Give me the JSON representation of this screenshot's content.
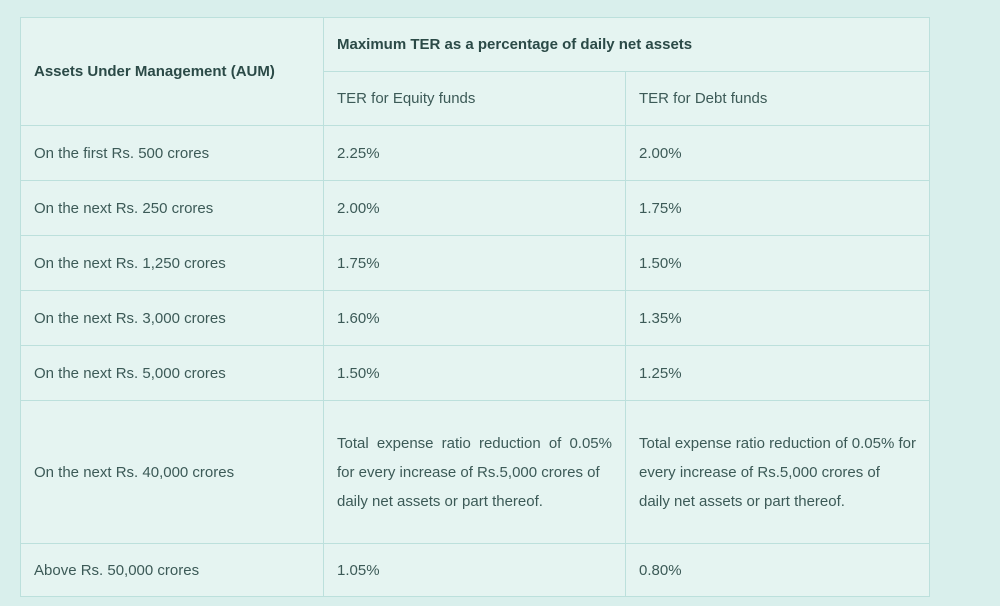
{
  "table": {
    "aum_header": "Assets Under Management (AUM)",
    "group_header": "Maximum TER as a percentage of daily net assets",
    "equity_header": "TER for Equity funds",
    "debt_header": "TER for Debt funds",
    "rows": [
      {
        "aum": "On the first Rs. 500 crores",
        "equity": "2.25%",
        "debt": "2.00%"
      },
      {
        "aum": "On the next Rs. 250 crores",
        "equity": "2.00%",
        "debt": "1.75%"
      },
      {
        "aum": "On the next Rs. 1,250 crores",
        "equity": "1.75%",
        "debt": "1.50%"
      },
      {
        "aum": "On the next Rs. 3,000 crores",
        "equity": "1.60%",
        "debt": "1.35%"
      },
      {
        "aum": "On the next Rs. 5,000 crores",
        "equity": "1.50%",
        "debt": "1.25%"
      }
    ],
    "long_row": {
      "aum": "On the next Rs. 40,000 crores",
      "equity_part1": "Total expense ratio reduction of 0.05% for every increase of Rs.5,000 crores of",
      "equity_part2": "daily net assets or part thereof.",
      "debt_part1": "Total expense ratio reduction of 0.05% for every increase of Rs.5,000 crores of",
      "debt_part2": "daily net assets or part thereof."
    },
    "last_row": {
      "aum": "Above Rs. 50,000 crores",
      "equity": "1.05%",
      "debt": "0.80%"
    },
    "colors": {
      "page_bg": "#d9efec",
      "cell_bg": "#e5f4f1",
      "border": "#bce0dc",
      "text": "#3c5a57",
      "header_text": "#2b4a47"
    }
  }
}
